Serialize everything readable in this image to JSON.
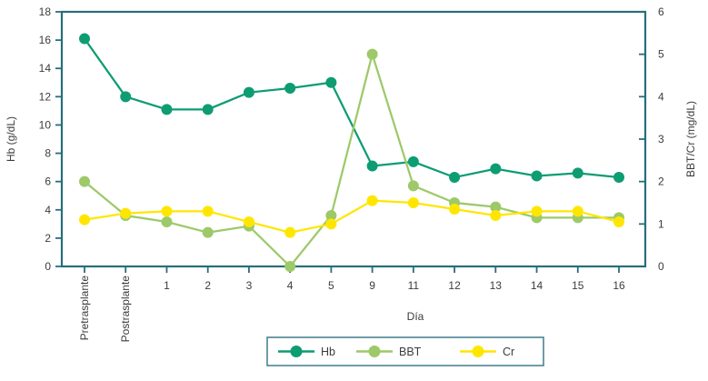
{
  "chart_data": {
    "type": "line",
    "categories": [
      "Pretrasplante",
      "Postrasplante",
      "1",
      "2",
      "3",
      "4",
      "5",
      "9",
      "11",
      "12",
      "13",
      "14",
      "15",
      "16"
    ],
    "series": [
      {
        "name": "Hb",
        "axis": "left",
        "color": "#0e9c73",
        "values": [
          16.1,
          12.0,
          11.1,
          11.1,
          12.3,
          12.6,
          13.0,
          7.1,
          7.4,
          6.3,
          6.9,
          6.4,
          6.6,
          6.3
        ]
      },
      {
        "name": "BBT",
        "axis": "right",
        "color": "#9dc969",
        "values": [
          2.0,
          1.2,
          1.05,
          0.8,
          0.95,
          0.0,
          1.2,
          5.0,
          1.9,
          1.5,
          1.4,
          1.15,
          1.15,
          1.15
        ]
      },
      {
        "name": "Cr",
        "axis": "right",
        "color": "#ffe601",
        "values": [
          1.1,
          1.25,
          1.3,
          1.3,
          1.05,
          0.8,
          1.0,
          1.55,
          1.5,
          1.35,
          1.2,
          1.3,
          1.3,
          1.05
        ]
      }
    ],
    "xlabel": "Día",
    "ylabel_left": "Hb (g/dL)",
    "ylabel_right": "BBT/Cr (mg/dL)",
    "left_axis": {
      "min": 0,
      "max": 18,
      "step": 2
    },
    "right_axis": {
      "min": 0,
      "max": 6,
      "step": 1
    },
    "legend": {
      "position": "bottom",
      "labels": [
        "Hb",
        "BBT",
        "Cr"
      ]
    },
    "grid": false,
    "colors": {
      "axis": "#266e7c",
      "text": "#3c3c3c",
      "background": "#ffffff",
      "legend_border": "#3f7c8a"
    }
  }
}
